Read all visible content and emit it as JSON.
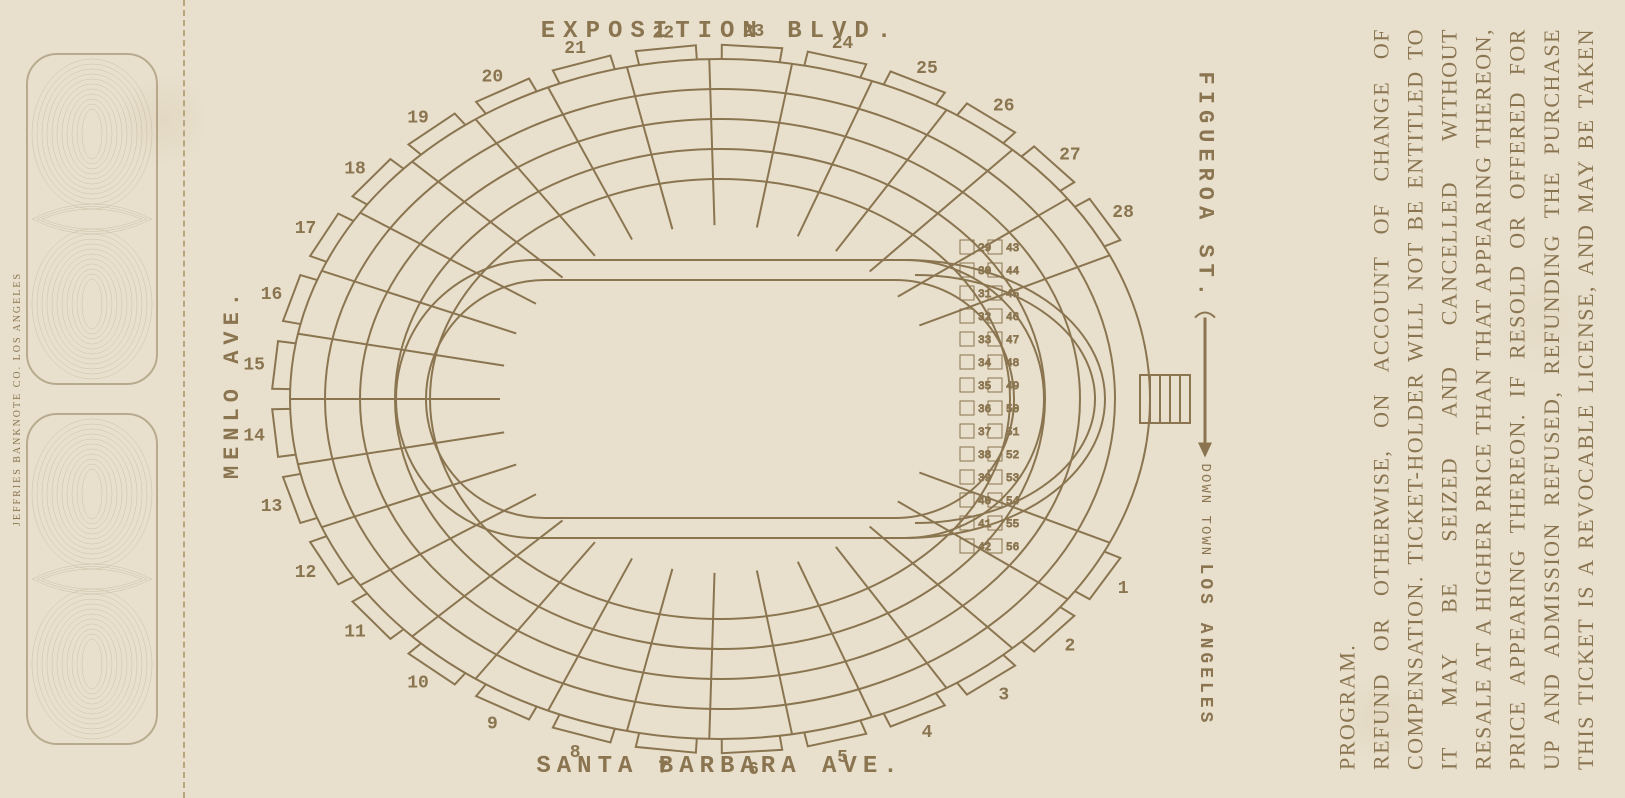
{
  "streets": {
    "top": "EXPOSITION BLVD.",
    "bottom": "SANTA BARBARA AVE.",
    "left": "MENLO AVE.",
    "right": "FIGUEROA ST.",
    "downtown": "DOWN TOWN",
    "city": "LOS ANGELES"
  },
  "printer": "JEFFRIES BANKNOTE CO. LOS ANGELES",
  "sections_top": [
    "19",
    "20",
    "21",
    "22",
    "23",
    "24",
    "25",
    "26",
    "27"
  ],
  "sections_top_left": [
    "18",
    "17"
  ],
  "sections_top_right": [
    "28"
  ],
  "sections_left": [
    "16",
    "15",
    "14",
    "13"
  ],
  "sections_right": [
    "1"
  ],
  "sections_bottom_left": [
    "12",
    "11"
  ],
  "sections_bottom_right": [
    "2"
  ],
  "sections_bottom": [
    "10",
    "9",
    "8",
    "7",
    "6",
    "5",
    "4",
    "3"
  ],
  "east_boxes": [
    "29",
    "30",
    "31",
    "32",
    "33",
    "34",
    "35",
    "36",
    "37",
    "38",
    "39",
    "40",
    "41",
    "42",
    "43",
    "44",
    "45",
    "46",
    "47",
    "48",
    "49",
    "50",
    "51",
    "52",
    "53",
    "54",
    "55",
    "56"
  ],
  "terms": "THIS TICKET IS A REVOCABLE LICENSE, AND MAY BE TAKEN UP AND ADMISSION REFUSED, REFUNDING THE PURCHASE PRICE APPEARING THEREON. IF RESOLD OR OFFERED FOR RESALE AT A HIGHER PRICE THAN THAT APPEARING THEREON, IT MAY BE SEIZED AND CANCELLED WITHOUT COMPENSATION. TICKET-HOLDER WILL NOT BE ENTITLED TO REFUND OR OTHERWISE, ON ACCOUNT OF CHANGE OF PROGRAM.",
  "colors": {
    "ink": "#8a7550",
    "paper": "#e8e0cd",
    "stroke_width": 2
  }
}
